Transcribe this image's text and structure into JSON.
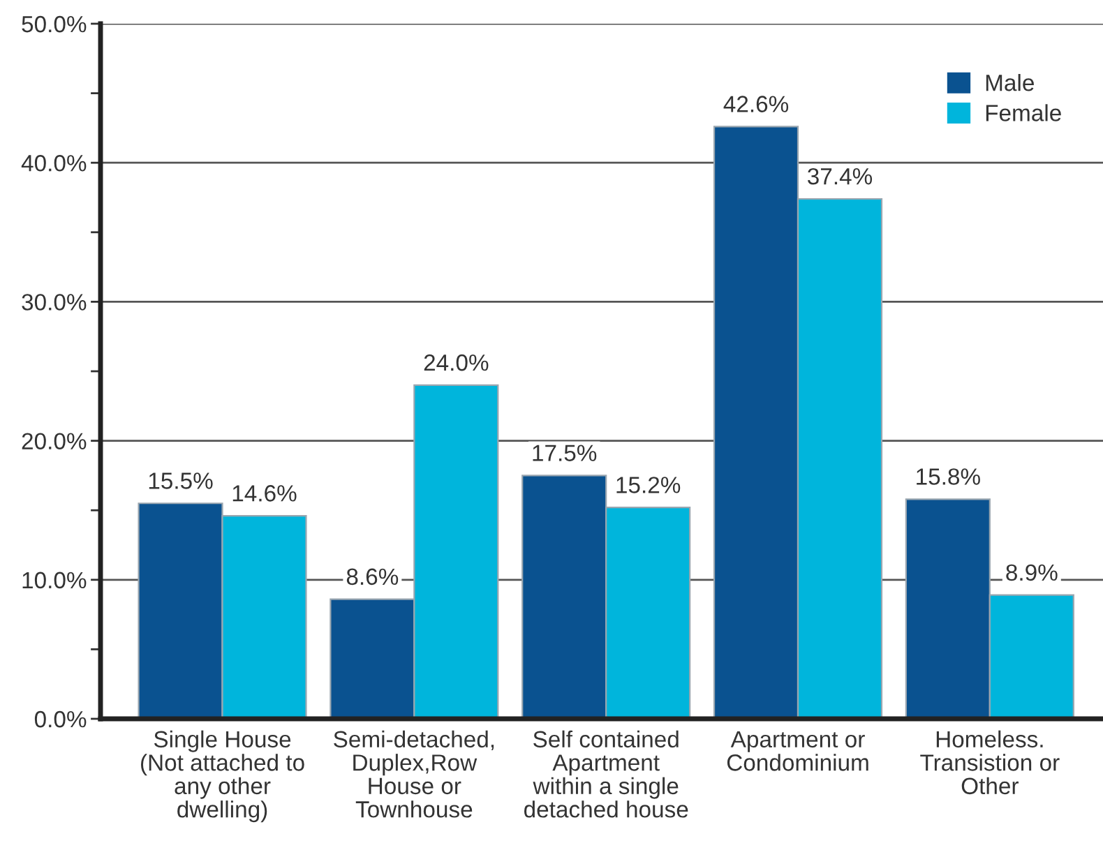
{
  "chart_data": {
    "type": "bar",
    "categories": [
      "Single House\n(Not attached to\nany other\ndwelling)",
      "Semi-detached,\nDuplex,Row\nHouse or\nTownhouse",
      "Self contained\nApartment\nwithin a single\ndetached house",
      "Apartment or\nCondominium",
      "Homeless.\nTransistion or\nOther"
    ],
    "series": [
      {
        "name": "Male",
        "color": "#0a5290",
        "values": [
          15.5,
          8.6,
          17.5,
          42.6,
          15.8
        ],
        "value_labels": [
          "15.5%",
          "8.6%",
          "17.5%",
          "42.6%",
          "15.8%"
        ]
      },
      {
        "name": "Female",
        "color": "#00b5dc",
        "values": [
          14.6,
          24.0,
          15.2,
          37.4,
          8.9
        ],
        "value_labels": [
          "14.6%",
          "24.0%",
          "15.2%",
          "37.4%",
          "8.9%"
        ]
      }
    ],
    "ylim": [
      0,
      50
    ],
    "yticks": [
      {
        "value": 0,
        "label": "0.0%"
      },
      {
        "value": 5,
        "label": null
      },
      {
        "value": 10,
        "label": "10.0%"
      },
      {
        "value": 15,
        "label": null
      },
      {
        "value": 20,
        "label": "20.0%"
      },
      {
        "value": 25,
        "label": null
      },
      {
        "value": 30,
        "label": "30.0%"
      },
      {
        "value": 35,
        "label": null
      },
      {
        "value": 40,
        "label": "40.0%"
      },
      {
        "value": 45,
        "label": null
      },
      {
        "value": 50,
        "label": "50.0%"
      }
    ],
    "grid": "y",
    "legend": "top right"
  }
}
